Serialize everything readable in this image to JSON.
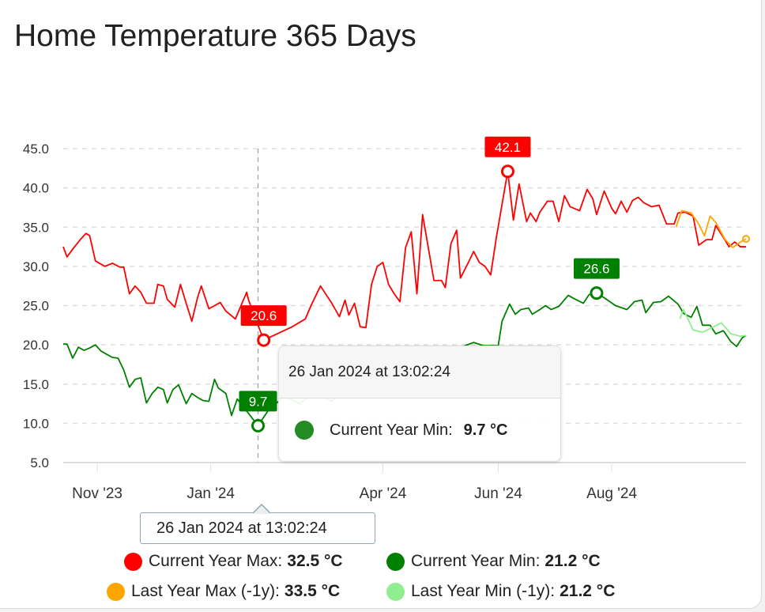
{
  "title": "Home Temperature 365 Days",
  "chart_data": {
    "type": "line",
    "title": "Home Temperature 365 Days",
    "x_unit": "days since 15 Oct 2023",
    "ylim": [
      5,
      45
    ],
    "xlim": [
      0,
      361
    ],
    "yticks": [
      "5.0",
      "10.0",
      "15.0",
      "20.0",
      "25.0",
      "30.0",
      "35.0",
      "40.0",
      "45.0"
    ],
    "ytick_values": [
      5,
      10,
      15,
      20,
      25,
      30,
      35,
      40,
      45
    ],
    "xticks": [
      {
        "day": 18,
        "label": "Nov '23"
      },
      {
        "day": 78,
        "label": "Jan '24"
      },
      {
        "day": 169,
        "label": "Apr '24"
      },
      {
        "day": 230,
        "label": "Jun '24"
      },
      {
        "day": 290,
        "label": "Aug '24"
      }
    ],
    "grid": true,
    "legend_position": "bottom",
    "series": [
      {
        "name": "Current Year Max",
        "color": "#ff0000",
        "current": "32.5 °C",
        "points": [
          [
            0,
            32.5
          ],
          [
            2,
            31.2
          ],
          [
            5,
            32.2
          ],
          [
            9,
            33.4
          ],
          [
            12,
            34.2
          ],
          [
            14,
            33.9
          ],
          [
            17,
            30.7
          ],
          [
            22,
            30.0
          ],
          [
            26,
            30.4
          ],
          [
            30,
            29.9
          ],
          [
            32,
            29.9
          ],
          [
            35,
            26.5
          ],
          [
            38,
            27.5
          ],
          [
            41,
            26.7
          ],
          [
            44,
            25.3
          ],
          [
            48,
            25.3
          ],
          [
            50,
            27.7
          ],
          [
            53,
            27.5
          ],
          [
            55,
            25.8
          ],
          [
            59,
            24.8
          ],
          [
            62,
            27.7
          ],
          [
            65,
            25.3
          ],
          [
            68,
            23.0
          ],
          [
            71,
            26.0
          ],
          [
            73,
            27.5
          ],
          [
            77,
            24.6
          ],
          [
            80,
            25.0
          ],
          [
            83,
            25.4
          ],
          [
            86,
            24.3
          ],
          [
            91,
            23.3
          ],
          [
            97,
            26.7
          ],
          [
            98,
            25.7
          ],
          [
            106,
            20.6
          ],
          [
            121,
            22.3
          ],
          [
            128,
            23.3
          ],
          [
            131,
            25.0
          ],
          [
            136,
            27.5
          ],
          [
            142,
            25.3
          ],
          [
            146,
            23.6
          ],
          [
            149,
            25.7
          ],
          [
            151,
            23.8
          ],
          [
            154,
            25.3
          ],
          [
            157,
            22.3
          ],
          [
            160,
            22.2
          ],
          [
            163,
            27.7
          ],
          [
            166,
            30.0
          ],
          [
            169,
            30.5
          ],
          [
            172,
            27.7
          ],
          [
            175,
            26.5
          ],
          [
            178,
            25.5
          ],
          [
            181,
            32.4
          ],
          [
            184,
            34.4
          ],
          [
            187,
            26.5
          ],
          [
            190,
            36.6
          ],
          [
            193,
            32.4
          ],
          [
            196,
            28.2
          ],
          [
            200,
            28.2
          ],
          [
            202,
            27.3
          ],
          [
            205,
            32.9
          ],
          [
            208,
            34.6
          ],
          [
            210,
            28.5
          ],
          [
            214,
            30.4
          ],
          [
            217,
            31.9
          ],
          [
            220,
            30.5
          ],
          [
            223,
            30.0
          ],
          [
            226,
            28.9
          ],
          [
            229,
            33.7
          ],
          [
            232,
            37.9
          ],
          [
            235,
            42.1
          ],
          [
            238,
            35.9
          ],
          [
            241,
            40.5
          ],
          [
            245,
            35.7
          ],
          [
            247,
            36.8
          ],
          [
            250,
            35.7
          ],
          [
            252,
            36.9
          ],
          [
            256,
            38.3
          ],
          [
            259,
            38.3
          ],
          [
            262,
            35.7
          ],
          [
            265,
            39.0
          ],
          [
            268,
            37.6
          ],
          [
            273,
            37.1
          ],
          [
            277,
            39.8
          ],
          [
            280,
            38.6
          ],
          [
            282,
            36.6
          ],
          [
            286,
            39.6
          ],
          [
            290,
            37.4
          ],
          [
            292,
            36.7
          ],
          [
            295,
            38.3
          ],
          [
            298,
            36.9
          ],
          [
            301,
            38.4
          ],
          [
            304,
            38.8
          ],
          [
            307,
            38.1
          ],
          [
            311,
            37.6
          ],
          [
            315,
            37.8
          ],
          [
            319,
            35.4
          ],
          [
            323,
            35.4
          ],
          [
            325,
            36.8
          ],
          [
            329,
            36.9
          ],
          [
            333,
            36.4
          ],
          [
            336,
            32.7
          ],
          [
            340,
            33.4
          ],
          [
            343,
            33.4
          ],
          [
            345,
            35.2
          ],
          [
            349,
            33.7
          ],
          [
            352,
            32.5
          ],
          [
            355,
            33.1
          ],
          [
            358,
            32.5
          ],
          [
            361,
            32.5
          ]
        ],
        "annotation": {
          "day": 235,
          "value": 42.1,
          "label": "42.1"
        },
        "annotation2": {
          "day": 106,
          "value": 20.6,
          "label": "20.6"
        }
      },
      {
        "name": "Current Year Min",
        "color": "#008000",
        "current": "21.2 °C",
        "points": [
          [
            0,
            20.1
          ],
          [
            2,
            20.1
          ],
          [
            5,
            18.3
          ],
          [
            8,
            19.7
          ],
          [
            11,
            19.3
          ],
          [
            14,
            19.6
          ],
          [
            17,
            20.0
          ],
          [
            20,
            19.2
          ],
          [
            23,
            18.8
          ],
          [
            26,
            18.4
          ],
          [
            29,
            18.3
          ],
          [
            32,
            16.8
          ],
          [
            35,
            14.6
          ],
          [
            38,
            15.6
          ],
          [
            41,
            15.8
          ],
          [
            44,
            12.6
          ],
          [
            47,
            13.8
          ],
          [
            50,
            14.6
          ],
          [
            53,
            14.3
          ],
          [
            55,
            12.6
          ],
          [
            58,
            14.3
          ],
          [
            61,
            14.9
          ],
          [
            65,
            12.5
          ],
          [
            68,
            13.8
          ],
          [
            71,
            13.3
          ],
          [
            74,
            12.9
          ],
          [
            77,
            12.8
          ],
          [
            80,
            15.6
          ],
          [
            82,
            14.5
          ],
          [
            86,
            13.8
          ],
          [
            89,
            11.0
          ],
          [
            92,
            13.1
          ],
          [
            103,
            9.7
          ],
          [
            108,
            11.5
          ],
          [
            117,
            13.5
          ],
          [
            125,
            12.5
          ],
          [
            133,
            14.0
          ],
          [
            142,
            12.8
          ],
          [
            150,
            15.0
          ],
          [
            158,
            14.0
          ],
          [
            167,
            16.5
          ],
          [
            175,
            15.0
          ],
          [
            183,
            17.0
          ],
          [
            192,
            16.0
          ],
          [
            200,
            18.0
          ],
          [
            208,
            19.5
          ],
          [
            217,
            20.3
          ],
          [
            222,
            19.9
          ],
          [
            230,
            19.9
          ],
          [
            232,
            23.0
          ],
          [
            236,
            25.2
          ],
          [
            239,
            23.9
          ],
          [
            242,
            24.5
          ],
          [
            246,
            24.7
          ],
          [
            248,
            23.9
          ],
          [
            252,
            24.5
          ],
          [
            255,
            25.0
          ],
          [
            258,
            24.5
          ],
          [
            262,
            24.9
          ],
          [
            267,
            26.3
          ],
          [
            270,
            25.9
          ],
          [
            275,
            25.3
          ],
          [
            278,
            26.4
          ],
          [
            282,
            26.6
          ],
          [
            286,
            26.0
          ],
          [
            292,
            25.0
          ],
          [
            298,
            24.5
          ],
          [
            302,
            25.5
          ],
          [
            306,
            25.7
          ],
          [
            308,
            24.1
          ],
          [
            312,
            25.4
          ],
          [
            316,
            25.5
          ],
          [
            320,
            26.2
          ],
          [
            325,
            25.2
          ],
          [
            328,
            24.0
          ],
          [
            332,
            23.5
          ],
          [
            335,
            24.9
          ],
          [
            338,
            22.5
          ],
          [
            342,
            22.5
          ],
          [
            345,
            21.4
          ],
          [
            349,
            21.8
          ],
          [
            353,
            20.4
          ],
          [
            356,
            19.8
          ],
          [
            359,
            20.9
          ],
          [
            361,
            21.2
          ]
        ],
        "annotation": {
          "day": 282,
          "value": 26.6,
          "label": "26.6"
        },
        "annotation2": {
          "day": 103,
          "value": 9.7,
          "label": "9.7"
        }
      },
      {
        "name": "Last Year Max (-1y)",
        "color": "#ffa500",
        "current": "33.5 °C",
        "points": [
          [
            324,
            35.0
          ],
          [
            327,
            37.1
          ],
          [
            332,
            36.8
          ],
          [
            336,
            35.4
          ],
          [
            339,
            33.9
          ],
          [
            342,
            36.4
          ],
          [
            345,
            35.6
          ],
          [
            350,
            33.4
          ],
          [
            354,
            32.4
          ],
          [
            358,
            33.1
          ],
          [
            361,
            33.5
          ]
        ]
      },
      {
        "name": "Last Year Min (-1y)",
        "color": "#90ee90",
        "current": "21.2 °C",
        "points": [
          [
            326,
            23.3
          ],
          [
            328,
            24.5
          ],
          [
            333,
            21.9
          ],
          [
            338,
            21.6
          ],
          [
            348,
            22.8
          ],
          [
            353,
            21.4
          ],
          [
            358,
            21.1
          ],
          [
            361,
            21.2
          ]
        ]
      }
    ]
  },
  "tooltip": {
    "header": "26 Jan 2024 at 13:02:24",
    "series_name": "Current Year Min:",
    "value": "9.7 °C",
    "color": "#228b22"
  },
  "x_tooltip": "26 Jan 2024 at 13:02:24",
  "crosshair_day": 103
}
